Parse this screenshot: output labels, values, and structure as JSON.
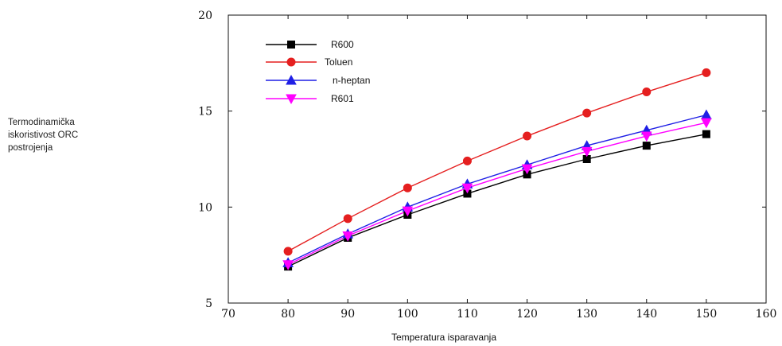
{
  "chart_data": {
    "type": "line",
    "xlabel": "Temperatura isparavanja",
    "ylabel_lines": [
      "Termodinamička",
      "iskoristivost ORC",
      "postrojenja"
    ],
    "xlim": [
      70,
      160
    ],
    "ylim": [
      5,
      20
    ],
    "xticks": [
      70,
      80,
      90,
      100,
      110,
      120,
      130,
      140,
      150,
      160
    ],
    "yticks": [
      5,
      10,
      15,
      20
    ],
    "grid": false,
    "legend_position": "top-left",
    "x": [
      80,
      90,
      100,
      110,
      120,
      130,
      140,
      150
    ],
    "series": [
      {
        "name": "R600",
        "color": "#000000",
        "marker": "square",
        "values": [
          6.9,
          8.4,
          9.6,
          10.7,
          11.7,
          12.5,
          13.2,
          13.8
        ]
      },
      {
        "name": "Toluen",
        "color": "#e51f1f",
        "marker": "circle",
        "values": [
          7.7,
          9.4,
          11.0,
          12.4,
          13.7,
          14.9,
          16.0,
          17.0
        ]
      },
      {
        "name": "n-heptan",
        "color": "#1f1fe5",
        "marker": "triangle-up",
        "values": [
          7.1,
          8.6,
          10.0,
          11.2,
          12.2,
          13.2,
          14.0,
          14.8
        ]
      },
      {
        "name": "R601",
        "color": "#ff00ff",
        "marker": "triangle-down",
        "values": [
          7.0,
          8.5,
          9.8,
          11.0,
          12.0,
          12.9,
          13.7,
          14.4
        ]
      }
    ]
  }
}
